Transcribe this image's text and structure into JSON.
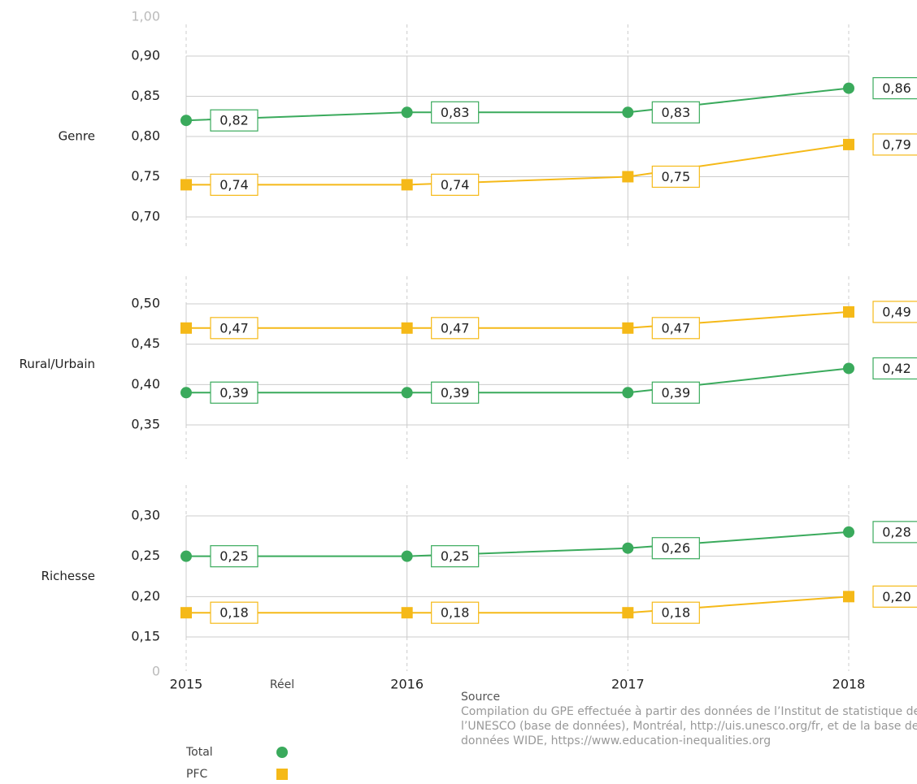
{
  "axis_break_labels": {
    "top": "1,00",
    "bottom": "0"
  },
  "legend": {
    "title": "Réel"
  },
  "source": {
    "title": "Source",
    "text": "Compilation du GPE effectuée à partir des données de l’Institut de statistique de l’UNESCO (base de données), Montréal, http://uis.unesco.org/fr, et de la base de données WIDE, https://www.education-inequalities.org"
  },
  "chart_data": [
    {
      "type": "line",
      "title": "Genre",
      "ylim": [
        0.7,
        0.9
      ],
      "yticks": [
        {
          "value": 0.9,
          "label": "0,90"
        },
        {
          "value": 0.85,
          "label": "0,85"
        },
        {
          "value": 0.8,
          "label": "0,80"
        },
        {
          "value": 0.75,
          "label": "0,75"
        },
        {
          "value": 0.7,
          "label": "0,70"
        }
      ],
      "series": [
        {
          "name": "Total",
          "color": "#3aaa5c",
          "marker": "circle",
          "values": [
            0.82,
            0.83,
            0.83,
            0.86
          ],
          "value_labels": [
            "0,82",
            "0,83",
            "0,83",
            "0,86"
          ]
        },
        {
          "name": "PFC",
          "color": "#f5b918",
          "marker": "square",
          "values": [
            0.74,
            0.74,
            0.75,
            0.79
          ],
          "value_labels": [
            "0,74",
            "0,74",
            "0,75",
            "0,79"
          ]
        }
      ]
    },
    {
      "type": "line",
      "title": "Rural/Urbain",
      "ylim": [
        0.35,
        0.5
      ],
      "yticks": [
        {
          "value": 0.5,
          "label": "0,50"
        },
        {
          "value": 0.45,
          "label": "0,45"
        },
        {
          "value": 0.4,
          "label": "0,40"
        },
        {
          "value": 0.35,
          "label": "0,35"
        }
      ],
      "series": [
        {
          "name": "Total",
          "color": "#3aaa5c",
          "marker": "circle",
          "values": [
            0.39,
            0.39,
            0.39,
            0.42
          ],
          "value_labels": [
            "0,39",
            "0,39",
            "0,39",
            "0,42"
          ]
        },
        {
          "name": "PFC",
          "color": "#f5b918",
          "marker": "square",
          "values": [
            0.47,
            0.47,
            0.47,
            0.49
          ],
          "value_labels": [
            "0,47",
            "0,47",
            "0,47",
            "0,49"
          ]
        }
      ]
    },
    {
      "type": "line",
      "title": "Richesse",
      "ylim": [
        0.15,
        0.3
      ],
      "categories": [
        "2015",
        "2016",
        "2017",
        "2018"
      ],
      "yticks": [
        {
          "value": 0.3,
          "label": "0,30"
        },
        {
          "value": 0.25,
          "label": "0,25"
        },
        {
          "value": 0.2,
          "label": "0,20"
        },
        {
          "value": 0.15,
          "label": "0,15"
        }
      ],
      "series": [
        {
          "name": "Total",
          "color": "#3aaa5c",
          "marker": "circle",
          "values": [
            0.25,
            0.25,
            0.26,
            0.28
          ],
          "value_labels": [
            "0,25",
            "0,25",
            "0,26",
            "0,28"
          ]
        },
        {
          "name": "PFC",
          "color": "#f5b918",
          "marker": "square",
          "values": [
            0.18,
            0.18,
            0.18,
            0.2
          ],
          "value_labels": [
            "0,18",
            "0,18",
            "0,18",
            "0,20"
          ]
        }
      ]
    }
  ]
}
